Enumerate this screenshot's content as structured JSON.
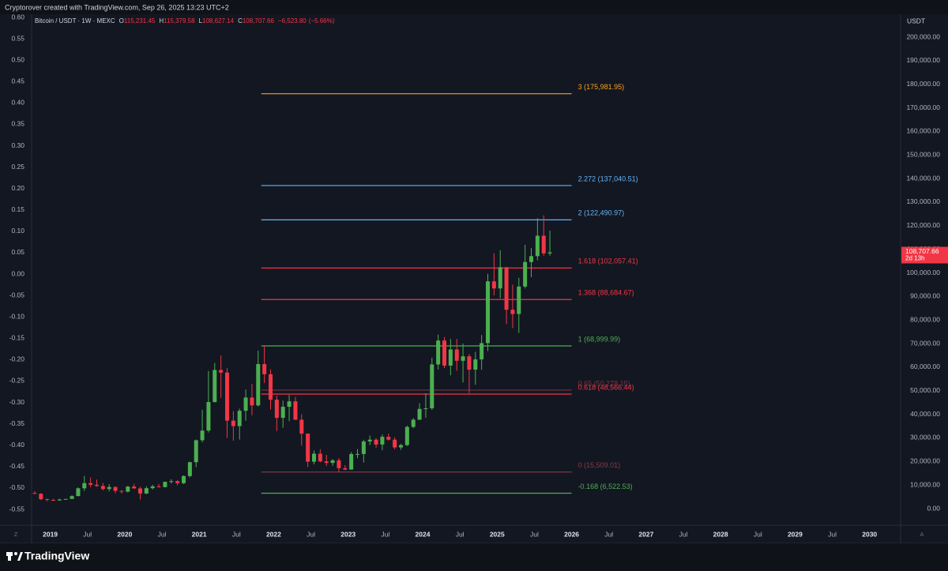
{
  "attribution": "Cryptorover created with TradingView.com, Sep 26, 2025 13:23 UTC+2",
  "brand": "TradingView",
  "corner_left": "Z",
  "corner_right": "A",
  "chart_data": {
    "type": "candlestick",
    "title": "Bitcoin / USDT · 1W · MEXC",
    "ohlc_header": [
      {
        "prefix": "O",
        "value": 115231.45,
        "label": "115,231.45"
      },
      {
        "prefix": "H",
        "value": 115379.58,
        "label": "115,379.58"
      },
      {
        "prefix": "L",
        "value": 108627.14,
        "label": "108,627.14"
      },
      {
        "prefix": "C",
        "value": 108707.66,
        "label": "108,707.66"
      }
    ],
    "change": {
      "value": -6523.8,
      "label": "−6,523.80"
    },
    "change_pct": {
      "value": -5.66,
      "label": "(−5.66%)"
    },
    "currency": "USDT",
    "up_color": "#4caf50",
    "down_color": "#f23645",
    "grid": false,
    "x": [
      "2018-10",
      "2018-11",
      "2018-12",
      "2019-01",
      "2019-02",
      "2019-03",
      "2019-04",
      "2019-05",
      "2019-06",
      "2019-07",
      "2019-08",
      "2019-09",
      "2019-10",
      "2019-11",
      "2019-12",
      "2020-01",
      "2020-02",
      "2020-03",
      "2020-04",
      "2020-05",
      "2020-06",
      "2020-07",
      "2020-08",
      "2020-09",
      "2020-10",
      "2020-11",
      "2020-12",
      "2021-01",
      "2021-02",
      "2021-03",
      "2021-04",
      "2021-05",
      "2021-06",
      "2021-07",
      "2021-08",
      "2021-09",
      "2021-10",
      "2021-11",
      "2021-12",
      "2022-01",
      "2022-02",
      "2022-03",
      "2022-04",
      "2022-05",
      "2022-06",
      "2022-07",
      "2022-08",
      "2022-09",
      "2022-10",
      "2022-11",
      "2022-12",
      "2023-01",
      "2023-02",
      "2023-03",
      "2023-04",
      "2023-05",
      "2023-06",
      "2023-07",
      "2023-08",
      "2023-09",
      "2023-10",
      "2023-11",
      "2023-12",
      "2024-01",
      "2024-02",
      "2024-03",
      "2024-04",
      "2024-05",
      "2024-06",
      "2024-07",
      "2024-08",
      "2024-09",
      "2024-10",
      "2024-11",
      "2024-12",
      "2025-01",
      "2025-02",
      "2025-03",
      "2025-04",
      "2025-05",
      "2025-06",
      "2025-07",
      "2025-08",
      "2025-09"
    ],
    "series": [
      {
        "axis": "y2",
        "open": [
          6600,
          6300,
          4000,
          3700,
          3450,
          3850,
          4100,
          5300,
          8600,
          10800,
          10100,
          9600,
          8300,
          9150,
          7550,
          7200,
          9350,
          8550,
          6400,
          8650,
          9450,
          9150,
          11350,
          11650,
          10800,
          13800,
          19700,
          29000,
          33100,
          45200,
          58800,
          57700,
          37300,
          35000,
          41500,
          47100,
          43800,
          61300,
          57000,
          46200,
          38500,
          43200,
          45500,
          37700,
          31800,
          19900,
          23300,
          20050,
          19400,
          20500,
          17150,
          16550,
          23150,
          23150,
          28500,
          29250,
          27200,
          30450,
          29250,
          25950,
          26950,
          34650,
          37700,
          42300,
          42550,
          61150,
          71300,
          60650,
          67500,
          62700,
          64600,
          58950,
          63300,
          70200,
          96400,
          93400,
          102400,
          84350,
          82550,
          94200,
          104600,
          107100,
          115750,
          108250
        ],
        "high": [
          7400,
          6550,
          4250,
          4100,
          4200,
          4150,
          5650,
          9000,
          13900,
          13200,
          12300,
          10900,
          10400,
          9500,
          7750,
          9600,
          10500,
          9200,
          9450,
          10100,
          10400,
          11450,
          12500,
          12050,
          14100,
          19900,
          29300,
          41900,
          58400,
          61800,
          64900,
          59600,
          41300,
          42400,
          50500,
          52900,
          67000,
          69000,
          59100,
          47900,
          45800,
          48200,
          47400,
          40000,
          31900,
          24700,
          25200,
          22800,
          20950,
          21450,
          18400,
          23950,
          25250,
          29200,
          31000,
          29850,
          31450,
          31800,
          30250,
          27450,
          35200,
          38400,
          44700,
          48950,
          64000,
          73800,
          72800,
          71950,
          72000,
          70000,
          65600,
          66500,
          73600,
          99600,
          108300,
          109600,
          102500,
          95000,
          97900,
          111900,
          110500,
          123200,
          124400,
          117900
        ],
        "low": [
          6200,
          3650,
          3150,
          3350,
          3400,
          3700,
          4050,
          5300,
          7500,
          9100,
          9300,
          7700,
          7300,
          6500,
          6400,
          6850,
          8450,
          3850,
          6150,
          8100,
          8900,
          8950,
          10600,
          9850,
          10400,
          13200,
          17600,
          28100,
          32300,
          45000,
          47000,
          30000,
          28800,
          29300,
          37300,
          39600,
          43300,
          53300,
          42000,
          32900,
          34300,
          37100,
          37600,
          26700,
          17600,
          18800,
          19600,
          18150,
          18200,
          15500,
          16300,
          16500,
          21350,
          19550,
          26950,
          25800,
          24800,
          28850,
          25150,
          24900,
          26550,
          34100,
          37600,
          38550,
          41900,
          59000,
          59600,
          56550,
          58450,
          53500,
          49000,
          52550,
          58900,
          66800,
          90500,
          89250,
          78250,
          76600,
          74500,
          93400,
          98200,
          105300,
          107300,
          107300
        ],
        "close": [
          6300,
          4000,
          3700,
          3450,
          3850,
          4100,
          5300,
          8600,
          10800,
          10100,
          9600,
          8300,
          9150,
          7550,
          7200,
          9350,
          8550,
          6400,
          8650,
          9450,
          9150,
          11350,
          11650,
          10800,
          13800,
          19700,
          29000,
          33100,
          45200,
          58800,
          57700,
          37300,
          35000,
          41500,
          47100,
          43800,
          61300,
          57000,
          46200,
          38500,
          43200,
          45500,
          37700,
          31800,
          19900,
          23300,
          20050,
          19400,
          20500,
          17150,
          16550,
          23150,
          23150,
          28500,
          29250,
          27200,
          30450,
          29250,
          25950,
          26950,
          34650,
          37700,
          42300,
          42550,
          61150,
          71300,
          60650,
          67500,
          62700,
          64600,
          58950,
          63300,
          70200,
          96400,
          93400,
          102400,
          84350,
          82550,
          94200,
          104600,
          107100,
          115750,
          108250,
          108700
        ]
      }
    ],
    "xlim": [
      "2018-10",
      "2030-06"
    ],
    "xticks": [
      {
        "value": "2019-01",
        "label": "2019"
      },
      {
        "value": "2019-07",
        "label": "Jul"
      },
      {
        "value": "2020-01",
        "label": "2020"
      },
      {
        "value": "2020-07",
        "label": "Jul"
      },
      {
        "value": "2021-01",
        "label": "2021"
      },
      {
        "value": "2021-07",
        "label": "Jul"
      },
      {
        "value": "2022-01",
        "label": "2022"
      },
      {
        "value": "2022-07",
        "label": "Jul"
      },
      {
        "value": "2023-01",
        "label": "2023"
      },
      {
        "value": "2023-07",
        "label": "Jul"
      },
      {
        "value": "2024-01",
        "label": "2024"
      },
      {
        "value": "2024-07",
        "label": "Jul"
      },
      {
        "value": "2025-01",
        "label": "2025"
      },
      {
        "value": "2025-07",
        "label": "Jul"
      },
      {
        "value": "2026-01",
        "label": "2026"
      },
      {
        "value": "2026-07",
        "label": "Jul"
      },
      {
        "value": "2027-01",
        "label": "2027"
      },
      {
        "value": "2027-07",
        "label": "Jul"
      },
      {
        "value": "2028-01",
        "label": "2028"
      },
      {
        "value": "2028-07",
        "label": "Jul"
      },
      {
        "value": "2029-01",
        "label": "2029"
      },
      {
        "value": "2029-07",
        "label": "Jul"
      },
      {
        "value": "2030-01",
        "label": "2030"
      }
    ],
    "ylim": [
      -0.55,
      0.6
    ],
    "yticks": [
      {
        "value": 0.6,
        "label": "0.60"
      },
      0.55,
      {
        "value": 0.5,
        "label": "0.50"
      },
      0.45,
      {
        "value": 0.4,
        "label": "0.40"
      },
      0.35,
      {
        "value": 0.3,
        "label": "0.30"
      },
      0.25,
      {
        "value": 0.2,
        "label": "0.20"
      },
      0.15,
      {
        "value": 0.1,
        "label": "0.10"
      },
      0.05,
      {
        "value": 0,
        "label": "0.00"
      },
      -0.05,
      {
        "value": -0.1,
        "label": "-0.10"
      },
      -0.15,
      {
        "value": -0.2,
        "label": "-0.20"
      },
      -0.25,
      {
        "value": -0.3,
        "label": "-0.30"
      },
      -0.35,
      {
        "value": -0.4,
        "label": "-0.40"
      },
      -0.45,
      {
        "value": -0.5,
        "label": "-0.50"
      },
      -0.55
    ],
    "y2lim": [
      0,
      200000
    ],
    "y2ticks": [
      {
        "value": 200000,
        "label": "200,000.00"
      },
      {
        "value": 190000,
        "label": "190,000.00"
      },
      {
        "value": 180000,
        "label": "180,000.00"
      },
      {
        "value": 170000,
        "label": "170,000.00"
      },
      {
        "value": 160000,
        "label": "160,000.00"
      },
      {
        "value": 150000,
        "label": "150,000.00"
      },
      {
        "value": 140000,
        "label": "140,000.00"
      },
      {
        "value": 130000,
        "label": "130,000.00"
      },
      {
        "value": 120000,
        "label": "120,000.00"
      },
      {
        "value": 110000,
        "label": "110,000.00"
      },
      {
        "value": 100000,
        "label": "100,000.00"
      },
      {
        "value": 90000,
        "label": "90,000.00"
      },
      {
        "value": 80000,
        "label": "80,000.00"
      },
      {
        "value": 70000,
        "label": "70,000.00"
      },
      {
        "value": 60000,
        "label": "60,000.00"
      },
      {
        "value": 50000,
        "label": "50,000.00"
      },
      {
        "value": 40000,
        "label": "40,000.00"
      },
      {
        "value": 30000,
        "label": "30,000.00"
      },
      {
        "value": 20000,
        "label": "20,000.00"
      },
      {
        "value": 10000,
        "label": "10,000.00"
      },
      {
        "value": 0,
        "label": "0.00"
      }
    ],
    "fib_range": [
      "2021-11",
      "2026-01"
    ],
    "fib_levels": [
      {
        "value": 175981.95,
        "label": "3 (175,981.95)",
        "color": "#f7a21b"
      },
      {
        "value": 137040.51,
        "label": "2.272 (137,040.51)",
        "color": "#64b5f6"
      },
      {
        "value": 122490.97,
        "label": "2 (122,490.97)",
        "color": "#64b5f6"
      },
      {
        "value": 102057.41,
        "label": "1.618 (102,057.41)",
        "color": "#f23645"
      },
      {
        "value": 88684.67,
        "label": "1.368 (88,684.67)",
        "color": "#f23645"
      },
      {
        "value": 68999.99,
        "label": "1 (68,999.99)",
        "color": "#4caf50"
      },
      {
        "value": 50278.15,
        "label": "0.65 (50,278.15)",
        "color": "#7c3340"
      },
      {
        "value": 48566.44,
        "label": "0.618 (48,566.44)",
        "color": "#f23645"
      },
      {
        "value": 15509.01,
        "label": "0 (15,509.01)",
        "color": "#8a3a46"
      },
      {
        "value": 6522.53,
        "label": "-0.168 (6,522.53)",
        "color": "#4caf50"
      }
    ],
    "last_price": {
      "value": 108707.66,
      "label": "108,707.66",
      "countdown": "2d 13h",
      "color": "#f23645"
    }
  }
}
